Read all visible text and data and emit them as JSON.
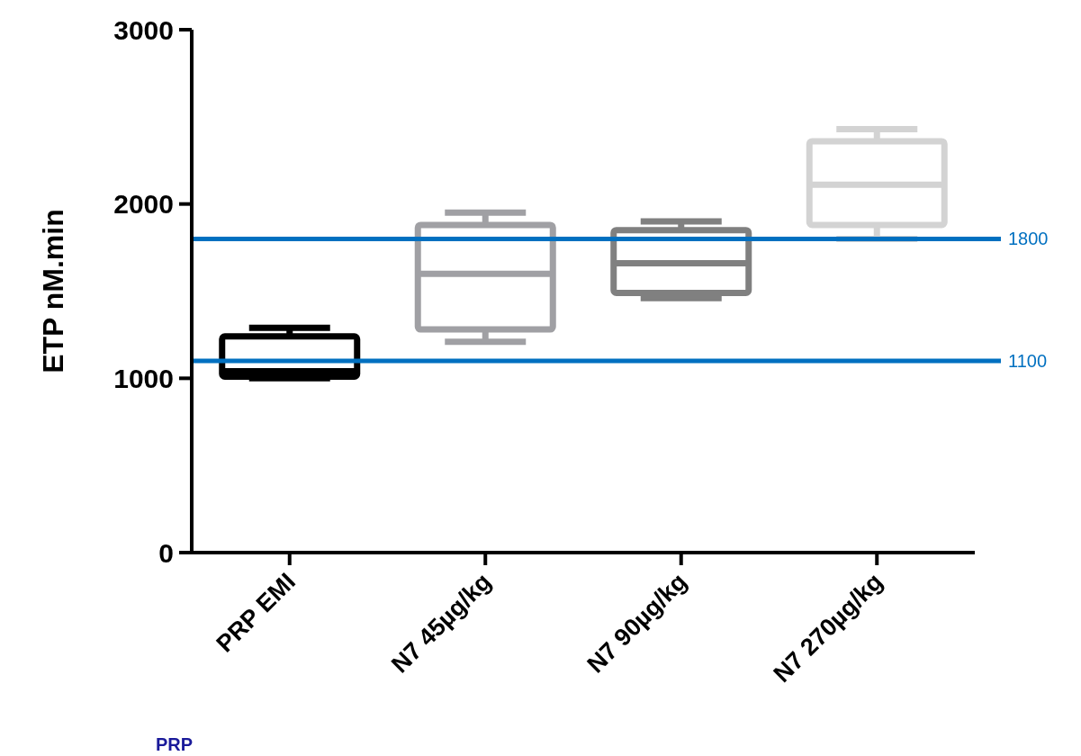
{
  "chart_data": {
    "type": "box",
    "ylabel": "ETP nM.min",
    "categories": [
      "PRP EMI",
      "N7 45µg/kg",
      "N7 90µg/kg",
      "N7 270µg/kg"
    ],
    "boxes": [
      {
        "low": 1000,
        "q1": 1010,
        "median": 1040,
        "q3": 1240,
        "high": 1290
      },
      {
        "low": 1210,
        "q1": 1280,
        "median": 1600,
        "q3": 1880,
        "high": 1950
      },
      {
        "low": 1460,
        "q1": 1490,
        "median": 1660,
        "q3": 1850,
        "high": 1900
      },
      {
        "low": 1800,
        "q1": 1880,
        "median": 2110,
        "q3": 2360,
        "high": 2430
      }
    ],
    "colors": [
      "#000000",
      "#a0a0a4",
      "#808080",
      "#d3d3d3"
    ],
    "ylim": [
      0,
      3000
    ],
    "yticks": [
      0,
      1000,
      2000,
      3000
    ],
    "ref_lines": [
      {
        "axis": "y",
        "value": 1800,
        "label": "1800",
        "color": "#0070c0"
      },
      {
        "axis": "y",
        "value": 1100,
        "label": "1100",
        "color": "#0070c0"
      }
    ],
    "annotations": [
      "PRP"
    ]
  }
}
